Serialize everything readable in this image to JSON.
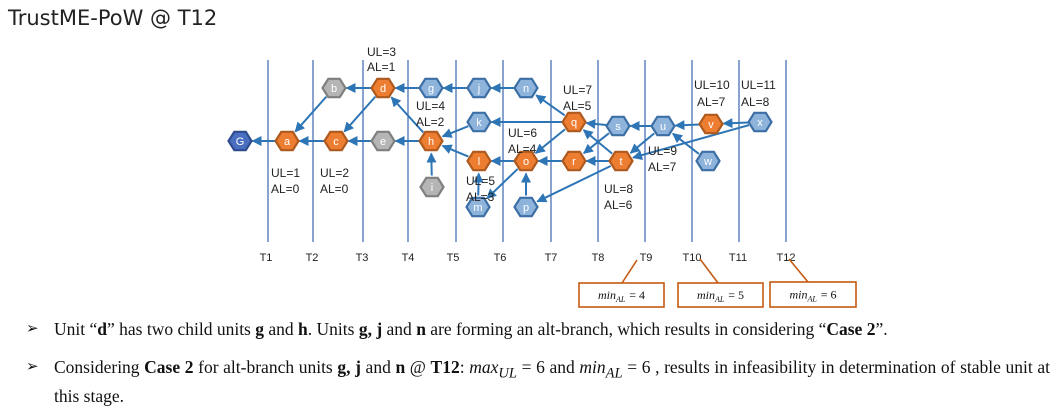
{
  "title": "TrustME-PoW @ T12",
  "time_labels": [
    "T1",
    "T2",
    "T3",
    "T4",
    "T5",
    "T6",
    "T7",
    "T8",
    "T9",
    "T10",
    "T11",
    "T12"
  ],
  "units": [
    {
      "id": "G",
      "label": "G",
      "color": "blue"
    },
    {
      "id": "a",
      "label": "a",
      "color": "orange"
    },
    {
      "id": "b",
      "label": "b",
      "color": "gray"
    },
    {
      "id": "c",
      "label": "c",
      "color": "orange"
    },
    {
      "id": "d",
      "label": "d",
      "color": "orange"
    },
    {
      "id": "e",
      "label": "e",
      "color": "gray"
    },
    {
      "id": "g",
      "label": "g",
      "color": "lightblue"
    },
    {
      "id": "h",
      "label": "h",
      "color": "orange"
    },
    {
      "id": "i",
      "label": "i",
      "color": "gray"
    },
    {
      "id": "j",
      "label": "j",
      "color": "lightblue"
    },
    {
      "id": "k",
      "label": "k",
      "color": "lightblue"
    },
    {
      "id": "l",
      "label": "l",
      "color": "orange"
    },
    {
      "id": "m",
      "label": "m",
      "color": "lightblue"
    },
    {
      "id": "n",
      "label": "n",
      "color": "lightblue"
    },
    {
      "id": "o",
      "label": "o",
      "color": "orange"
    },
    {
      "id": "p",
      "label": "p",
      "color": "lightblue"
    },
    {
      "id": "q",
      "label": "q",
      "color": "orange"
    },
    {
      "id": "r",
      "label": "r",
      "color": "orange"
    },
    {
      "id": "s",
      "label": "s",
      "color": "lightblue"
    },
    {
      "id": "t",
      "label": "t",
      "color": "orange"
    },
    {
      "id": "u",
      "label": "u",
      "color": "lightblue"
    },
    {
      "id": "v",
      "label": "v",
      "color": "orange"
    },
    {
      "id": "w",
      "label": "w",
      "color": "lightblue"
    },
    {
      "id": "x",
      "label": "x",
      "color": "lightblue"
    }
  ],
  "edges": [
    [
      "a",
      "G"
    ],
    [
      "b",
      "a"
    ],
    [
      "c",
      "a"
    ],
    [
      "d",
      "b"
    ],
    [
      "d",
      "c"
    ],
    [
      "e",
      "c"
    ],
    [
      "g",
      "d"
    ],
    [
      "h",
      "d"
    ],
    [
      "h",
      "e"
    ],
    [
      "i",
      "h"
    ],
    [
      "j",
      "g"
    ],
    [
      "k",
      "h"
    ],
    [
      "l",
      "h"
    ],
    [
      "m",
      "l"
    ],
    [
      "n",
      "j"
    ],
    [
      "o",
      "l"
    ],
    [
      "o",
      "m"
    ],
    [
      "p",
      "o"
    ],
    [
      "q",
      "n"
    ],
    [
      "q",
      "k"
    ],
    [
      "q",
      "o"
    ],
    [
      "r",
      "o"
    ],
    [
      "s",
      "q"
    ],
    [
      "s",
      "r"
    ],
    [
      "t",
      "r"
    ],
    [
      "t",
      "q"
    ],
    [
      "t",
      "p"
    ],
    [
      "u",
      "s"
    ],
    [
      "u",
      "t"
    ],
    [
      "v",
      "u"
    ],
    [
      "w",
      "u"
    ],
    [
      "x",
      "v"
    ],
    [
      "x",
      "t"
    ]
  ],
  "annotations": [
    {
      "id": "d-ul",
      "text": "UL=3"
    },
    {
      "id": "d-al",
      "text": "AL=1"
    },
    {
      "id": "h-ul",
      "text": "UL=4"
    },
    {
      "id": "h-al",
      "text": "AL=2"
    },
    {
      "id": "a-ul",
      "text": "UL=1"
    },
    {
      "id": "a-al",
      "text": "AL=0"
    },
    {
      "id": "c-ul",
      "text": "UL=2"
    },
    {
      "id": "c-al",
      "text": "AL=0"
    },
    {
      "id": "q-ul",
      "text": "UL=7"
    },
    {
      "id": "q-al",
      "text": "AL=5"
    },
    {
      "id": "o-ul",
      "text": "UL=6"
    },
    {
      "id": "o-al",
      "text": "AL=4"
    },
    {
      "id": "l-ul",
      "text": "UL=5"
    },
    {
      "id": "l-al",
      "text": "AL=3"
    },
    {
      "id": "t-ul",
      "text": "UL=8"
    },
    {
      "id": "t-al",
      "text": "AL=6"
    },
    {
      "id": "u-ul",
      "text": "UL=9"
    },
    {
      "id": "u-al",
      "text": "AL=7"
    },
    {
      "id": "v-ul",
      "text": "UL=10"
    },
    {
      "id": "v-al",
      "text": "AL=7"
    },
    {
      "id": "x-ul",
      "text": "UL=11"
    },
    {
      "id": "x-al",
      "text": "AL=8"
    }
  ],
  "min_boxes": [
    {
      "text": "min",
      "sub": "AL",
      "value": "= 4"
    },
    {
      "text": "min",
      "sub": "AL",
      "value": "= 5"
    },
    {
      "text": "min",
      "sub": "AL",
      "value": "= 6"
    }
  ],
  "colors": {
    "blue_fill": "#4a6fc0",
    "blue_stroke": "#2e4c8e",
    "orange_fill": "#ed7d31",
    "orange_stroke": "#ae5a1f",
    "gray_fill": "#b5b5b5",
    "gray_stroke": "#7f7f7f",
    "lightblue_fill": "#8fb4dc",
    "lightblue_stroke": "#3c6fa5",
    "arrow": "#2e75b6",
    "time_line": "#3a66b0",
    "box_border": "#c55a11"
  },
  "bullets": {
    "b1": {
      "p1": "Unit “",
      "d": "d",
      "p2": "” has two child units ",
      "g": "g",
      "p3": " and ",
      "h": "h",
      "p4": ". Units ",
      "gjn": "g, j",
      "p5": " and ",
      "n": "n",
      "p6": " are forming an alt-branch, which results in considering “",
      "case2": "Case 2",
      "p7": "”."
    },
    "b2": {
      "p1": "Considering ",
      "case2": "Case 2",
      "p2": " for alt-branch units ",
      "gj": "g, j",
      "p3": " and ",
      "n": "n",
      "p4": " @ ",
      "t12": "T12",
      "p5": ": ",
      "max": "max",
      "maxsub": "UL",
      "p6": " = 6 and ",
      "min": "min",
      "minsub": "AL",
      "p7": " = 6 , results in infeasibility in determination of stable unit at this stage."
    }
  }
}
